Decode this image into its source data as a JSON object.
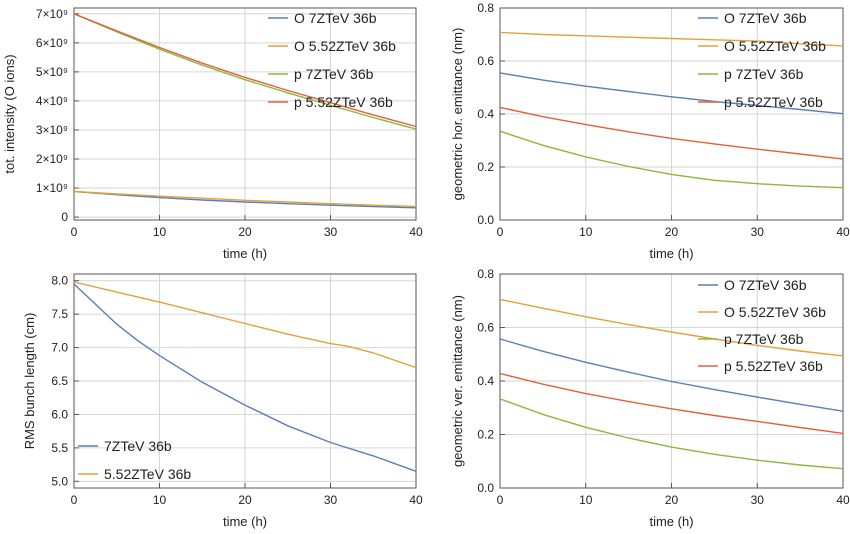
{
  "chart_data": [
    {
      "type": "line",
      "xlabel": "time (h)",
      "ylabel": "tot. intensity (O ions)",
      "xlim": [
        0,
        40
      ],
      "ylim": [
        -100000000.0,
        7200000000.0
      ],
      "xticks": [
        0,
        10,
        20,
        30,
        40
      ],
      "yticks": [
        0,
        1000000000.0,
        2000000000.0,
        3000000000.0,
        4000000000.0,
        5000000000.0,
        6000000000.0,
        7000000000.0
      ],
      "ytick_labels": [
        "0",
        "1×10⁹",
        "2×10⁹",
        "3×10⁹",
        "4×10⁹",
        "5×10⁹",
        "6×10⁹",
        "7×10⁹"
      ],
      "grid": true,
      "legend_position": "top-right",
      "series": [
        {
          "name": "O 7ZTeV 36b",
          "color": "#5b7fb8",
          "x": [
            0,
            5,
            10,
            15,
            20,
            25,
            30,
            35,
            40
          ],
          "y": [
            880000000.0,
            770000000.0,
            670000000.0,
            590000000.0,
            520000000.0,
            460000000.0,
            410000000.0,
            360000000.0,
            320000000.0
          ]
        },
        {
          "name": "O 5.52ZTeV 36b",
          "color": "#e2a23b",
          "x": [
            0,
            5,
            10,
            15,
            20,
            25,
            30,
            35,
            40
          ],
          "y": [
            880000000.0,
            800000000.0,
            720000000.0,
            650000000.0,
            580000000.0,
            520000000.0,
            460000000.0,
            410000000.0,
            370000000.0
          ]
        },
        {
          "name": "p 7ZTeV 36b",
          "color": "#8cb83c",
          "x": [
            0,
            5,
            10,
            15,
            20,
            25,
            30,
            35,
            40
          ],
          "y": [
            7000000000.0,
            6380000000.0,
            5780000000.0,
            5230000000.0,
            4730000000.0,
            4280000000.0,
            3850000000.0,
            3430000000.0,
            3030000000.0
          ]
        },
        {
          "name": "p 5.52ZTeV 36b",
          "color": "#e4603d",
          "x": [
            0,
            5,
            10,
            15,
            20,
            25,
            30,
            35,
            40
          ],
          "y": [
            7000000000.0,
            6410000000.0,
            5840000000.0,
            5300000000.0,
            4810000000.0,
            4360000000.0,
            3940000000.0,
            3520000000.0,
            3120000000.0
          ]
        }
      ]
    },
    {
      "type": "line",
      "xlabel": "time (h)",
      "ylabel": "geometric hor. emittance (nm)",
      "xlim": [
        0,
        40
      ],
      "ylim": [
        0,
        0.8
      ],
      "xticks": [
        0,
        10,
        20,
        30,
        40
      ],
      "yticks": [
        0,
        0.2,
        0.4,
        0.6,
        0.8
      ],
      "ytick_labels": [
        "0.0",
        "0.2",
        "0.4",
        "0.6",
        "0.8"
      ],
      "grid": true,
      "legend_position": "top-right",
      "series": [
        {
          "name": "O 7ZTeV 36b",
          "color": "#5b7fb8",
          "x": [
            0,
            5,
            10,
            15,
            20,
            25,
            30,
            35,
            40
          ],
          "y": [
            0.555,
            0.528,
            0.505,
            0.485,
            0.465,
            0.447,
            0.432,
            0.417,
            0.401
          ]
        },
        {
          "name": "O 5.52ZTeV 36b",
          "color": "#e2a23b",
          "x": [
            0,
            5,
            10,
            15,
            20,
            25,
            30,
            35,
            40
          ],
          "y": [
            0.708,
            0.7,
            0.695,
            0.69,
            0.685,
            0.68,
            0.675,
            0.665,
            0.657
          ]
        },
        {
          "name": "p 7ZTeV 36b",
          "color": "#8cb83c",
          "x": [
            0,
            5,
            10,
            15,
            20,
            25,
            30,
            35,
            40
          ],
          "y": [
            0.335,
            0.282,
            0.238,
            0.202,
            0.172,
            0.15,
            0.137,
            0.128,
            0.122
          ]
        },
        {
          "name": "p 5.52ZTeV 36b",
          "color": "#e4603d",
          "x": [
            0,
            5,
            10,
            15,
            20,
            25,
            30,
            35,
            40
          ],
          "y": [
            0.425,
            0.39,
            0.36,
            0.333,
            0.308,
            0.287,
            0.267,
            0.249,
            0.23
          ]
        }
      ]
    },
    {
      "type": "line",
      "xlabel": "time (h)",
      "ylabel": "RMS bunch length (cm)",
      "xlim": [
        0,
        40
      ],
      "ylim": [
        4.9,
        8.1
      ],
      "xticks": [
        0,
        10,
        20,
        30,
        40
      ],
      "yticks": [
        5.0,
        5.5,
        6.0,
        6.5,
        7.0,
        7.5,
        8.0
      ],
      "ytick_labels": [
        "5.0",
        "5.5",
        "6.0",
        "6.5",
        "7.0",
        "7.5",
        "8.0"
      ],
      "grid": true,
      "legend_position": "bottom-left",
      "series": [
        {
          "name": "7ZTeV 36b",
          "color": "#5b7fb8",
          "x": [
            0,
            2.5,
            5,
            7.5,
            10,
            15,
            20,
            25,
            30,
            35,
            40
          ],
          "y": [
            7.95,
            7.65,
            7.35,
            7.1,
            6.88,
            6.48,
            6.14,
            5.83,
            5.58,
            5.38,
            5.15
          ]
        },
        {
          "name": "5.52ZTeV 36b",
          "color": "#e2a23b",
          "x": [
            0,
            5,
            10,
            15,
            20,
            25,
            30,
            32,
            35,
            40
          ],
          "y": [
            7.98,
            7.83,
            7.68,
            7.52,
            7.36,
            7.2,
            7.06,
            7.02,
            6.92,
            6.7
          ]
        }
      ]
    },
    {
      "type": "line",
      "xlabel": "time (h)",
      "ylabel": "geometric ver. emittance (nm)",
      "xlim": [
        0,
        40
      ],
      "ylim": [
        0,
        0.8
      ],
      "xticks": [
        0,
        10,
        20,
        30,
        40
      ],
      "yticks": [
        0,
        0.2,
        0.4,
        0.6,
        0.8
      ],
      "ytick_labels": [
        "0.0",
        "0.2",
        "0.4",
        "0.6",
        "0.8"
      ],
      "grid": true,
      "legend_position": "top-right",
      "series": [
        {
          "name": "O 7ZTeV 36b",
          "color": "#5b7fb8",
          "x": [
            0,
            5,
            10,
            15,
            20,
            25,
            30,
            35,
            40
          ],
          "y": [
            0.557,
            0.511,
            0.47,
            0.433,
            0.398,
            0.368,
            0.34,
            0.313,
            0.287
          ]
        },
        {
          "name": "O 5.52ZTeV 36b",
          "color": "#e2a23b",
          "x": [
            0,
            5,
            10,
            15,
            20,
            25,
            30,
            35,
            40
          ],
          "y": [
            0.705,
            0.672,
            0.64,
            0.611,
            0.583,
            0.557,
            0.533,
            0.512,
            0.494
          ]
        },
        {
          "name": "p 7ZTeV 36b",
          "color": "#8cb83c",
          "x": [
            0,
            5,
            10,
            15,
            20,
            25,
            30,
            35,
            40
          ],
          "y": [
            0.333,
            0.275,
            0.227,
            0.187,
            0.153,
            0.126,
            0.104,
            0.086,
            0.072
          ]
        },
        {
          "name": "p 5.52ZTeV 36b",
          "color": "#e4603d",
          "x": [
            0,
            5,
            10,
            15,
            20,
            25,
            30,
            35,
            40
          ],
          "y": [
            0.428,
            0.388,
            0.353,
            0.323,
            0.296,
            0.271,
            0.249,
            0.226,
            0.204
          ]
        }
      ]
    }
  ]
}
